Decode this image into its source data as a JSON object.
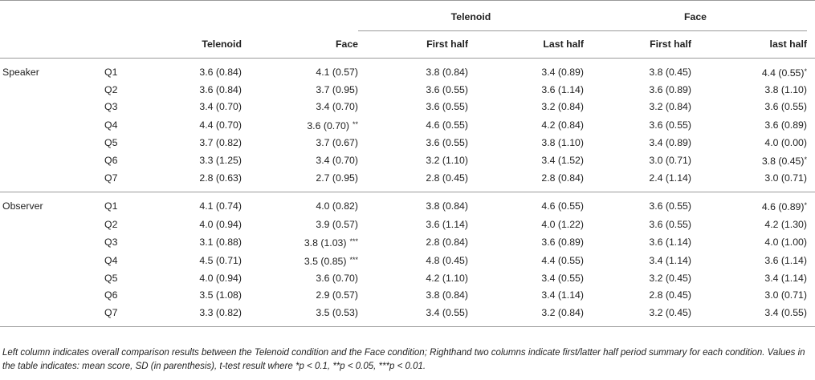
{
  "table": {
    "group_headers": {
      "telenoid": "Telenoid",
      "face": "Face"
    },
    "column_headers": [
      "Telenoid",
      "Face",
      "First half",
      "Last half",
      "First half",
      "last half"
    ],
    "sections": [
      {
        "label": "Speaker",
        "rows": [
          {
            "q": "Q1",
            "cells": [
              [
                "3.6 (0.84)",
                ""
              ],
              [
                "4.1 (0.57)",
                ""
              ],
              [
                "3.8 (0.84)",
                ""
              ],
              [
                "3.4 (0.89)",
                ""
              ],
              [
                "3.8 (0.45)",
                ""
              ],
              [
                "4.4 (0.55)",
                "*"
              ]
            ]
          },
          {
            "q": "Q2",
            "cells": [
              [
                "3.6 (0.84)",
                ""
              ],
              [
                "3.7 (0.95)",
                ""
              ],
              [
                "3.6 (0.55)",
                ""
              ],
              [
                "3.6 (1.14)",
                ""
              ],
              [
                "3.6 (0.89)",
                ""
              ],
              [
                "3.8 (1.10)",
                ""
              ]
            ]
          },
          {
            "q": "Q3",
            "cells": [
              [
                "3.4 (0.70)",
                ""
              ],
              [
                "3.4 (0.70)",
                ""
              ],
              [
                "3.6 (0.55)",
                ""
              ],
              [
                "3.2 (0.84)",
                ""
              ],
              [
                "3.2 (0.84)",
                ""
              ],
              [
                "3.6 (0.55)",
                ""
              ]
            ]
          },
          {
            "q": "Q4",
            "cells": [
              [
                "4.4 (0.70)",
                ""
              ],
              [
                "3.6 (0.70)",
                "**"
              ],
              [
                "4.6 (0.55)",
                ""
              ],
              [
                "4.2 (0.84)",
                ""
              ],
              [
                "3.6 (0.55)",
                ""
              ],
              [
                "3.6 (0.89)",
                ""
              ]
            ]
          },
          {
            "q": "Q5",
            "cells": [
              [
                "3.7 (0.82)",
                ""
              ],
              [
                "3.7 (0.67)",
                ""
              ],
              [
                "3.6 (0.55)",
                ""
              ],
              [
                "3.8 (1.10)",
                ""
              ],
              [
                "3.4 (0.89)",
                ""
              ],
              [
                "4.0 (0.00)",
                ""
              ]
            ]
          },
          {
            "q": "Q6",
            "cells": [
              [
                "3.3 (1.25)",
                ""
              ],
              [
                "3.4 (0.70)",
                ""
              ],
              [
                "3.2 (1.10)",
                ""
              ],
              [
                "3.4 (1.52)",
                ""
              ],
              [
                "3.0 (0.71)",
                ""
              ],
              [
                "3.8 (0.45)",
                "*"
              ]
            ]
          },
          {
            "q": "Q7",
            "cells": [
              [
                "2.8 (0.63)",
                ""
              ],
              [
                "2.7 (0.95)",
                ""
              ],
              [
                "2.8 (0.45)",
                ""
              ],
              [
                "2.8 (0.84)",
                ""
              ],
              [
                "2.4 (1.14)",
                ""
              ],
              [
                "3.0 (0.71)",
                ""
              ]
            ]
          }
        ]
      },
      {
        "label": "Observer",
        "rows": [
          {
            "q": "Q1",
            "cells": [
              [
                "4.1 (0.74)",
                ""
              ],
              [
                "4.0 (0.82)",
                ""
              ],
              [
                "3.8 (0.84)",
                ""
              ],
              [
                "4.6 (0.55)",
                ""
              ],
              [
                "3.6 (0.55)",
                ""
              ],
              [
                "4.6 (0.89)",
                "*"
              ]
            ]
          },
          {
            "q": "Q2",
            "cells": [
              [
                "4.0 (0.94)",
                ""
              ],
              [
                "3.9 (0.57)",
                ""
              ],
              [
                "3.6 (1.14)",
                ""
              ],
              [
                "4.0 (1.22)",
                ""
              ],
              [
                "3.6 (0.55)",
                ""
              ],
              [
                "4.2 (1.30)",
                ""
              ]
            ]
          },
          {
            "q": "Q3",
            "cells": [
              [
                "3.1 (0.88)",
                ""
              ],
              [
                "3.8 (1.03)",
                "***"
              ],
              [
                "2.8 (0.84)",
                ""
              ],
              [
                "3.6 (0.89)",
                ""
              ],
              [
                "3.6 (1.14)",
                ""
              ],
              [
                "4.0 (1.00)",
                ""
              ]
            ]
          },
          {
            "q": "Q4",
            "cells": [
              [
                "4.5 (0.71)",
                ""
              ],
              [
                "3.5 (0.85)",
                "***"
              ],
              [
                "4.8 (0.45)",
                ""
              ],
              [
                "4.4 (0.55)",
                ""
              ],
              [
                "3.4 (1.14)",
                ""
              ],
              [
                "3.6 (1.14)",
                ""
              ]
            ]
          },
          {
            "q": "Q5",
            "cells": [
              [
                "4.0 (0.94)",
                ""
              ],
              [
                "3.6 (0.70)",
                ""
              ],
              [
                "4.2 (1.10)",
                ""
              ],
              [
                "3.4 (0.55)",
                ""
              ],
              [
                "3.2 (0.45)",
                ""
              ],
              [
                "3.4 (1.14)",
                ""
              ]
            ]
          },
          {
            "q": "Q6",
            "cells": [
              [
                "3.5 (1.08)",
                ""
              ],
              [
                "2.9 (0.57)",
                ""
              ],
              [
                "3.8 (0.84)",
                ""
              ],
              [
                "3.4 (1.14)",
                ""
              ],
              [
                "2.8 (0.45)",
                ""
              ],
              [
                "3.0 (0.71)",
                ""
              ]
            ]
          },
          {
            "q": "Q7",
            "cells": [
              [
                "3.3 (0.82)",
                ""
              ],
              [
                "3.5 (0.53)",
                ""
              ],
              [
                "3.4 (0.55)",
                ""
              ],
              [
                "3.2 (0.84)",
                ""
              ],
              [
                "3.2 (0.45)",
                ""
              ],
              [
                "3.4 (0.55)",
                ""
              ]
            ]
          }
        ]
      }
    ],
    "footnote": "Left column indicates overall comparison results between the Telenoid condition and the Face condition; Righthand two columns indicate first/latter half period summary for each condition. Values in the table indicates: mean score, SD (in parenthesis), t-test result where *p < 0.1, **p < 0.05, ***p < 0.01."
  }
}
